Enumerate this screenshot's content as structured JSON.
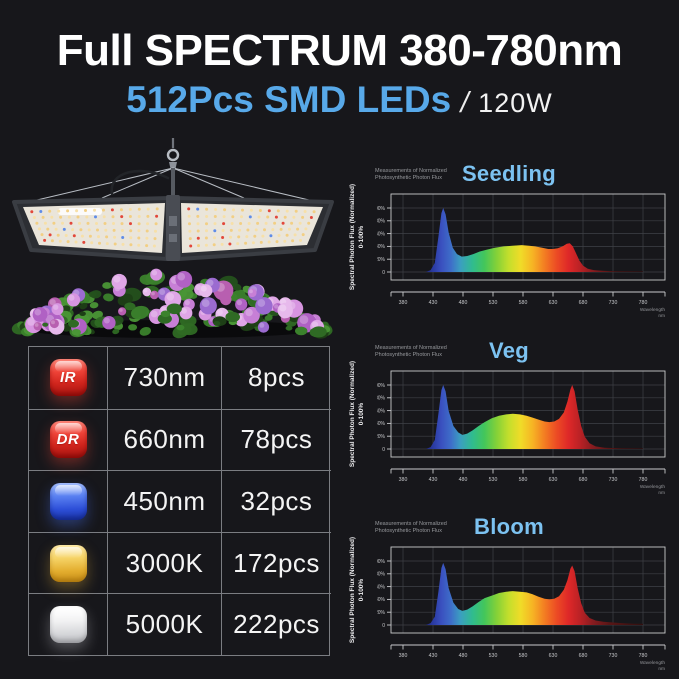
{
  "page": {
    "bg": "#17171b"
  },
  "header": {
    "title": "Full SPECTRUM 380-780nm",
    "subtitle_leds": "512Pcs SMD LEDs",
    "subtitle_sep": "/",
    "subtitle_watt": "120W",
    "accent_blue": "#58a9e9"
  },
  "fixture": {
    "frame": "#3a3d43",
    "board": "#eae5da",
    "led_warm": "#f7e0a8",
    "led_warm2": "#f2cf84",
    "led_red": "#e2473a",
    "led_blue": "#5f8ce8",
    "cable": "#b8bdc4",
    "foliage": [
      "#24511c",
      "#2f6a24",
      "#3b822c",
      "#4a9636",
      "#1d3f16"
    ],
    "blooms": [
      "#c77fd6",
      "#b061c4",
      "#d795e0",
      "#9b6bd0",
      "#dfa6e6",
      "#b85fb0",
      "#e7b9ec"
    ]
  },
  "led_table": {
    "rows": [
      {
        "chip_label": "IR",
        "chip_type": "red",
        "wavelength": "730nm",
        "count": "8pcs"
      },
      {
        "chip_label": "DR",
        "chip_type": "red",
        "wavelength": "660nm",
        "count": "78pcs"
      },
      {
        "chip_label": "",
        "chip_type": "blue",
        "wavelength": "450nm",
        "count": "32pcs"
      },
      {
        "chip_label": "",
        "chip_type": "gold",
        "wavelength": "3000K",
        "count": "172pcs"
      },
      {
        "chip_label": "",
        "chip_type": "white",
        "wavelength": "5000K",
        "count": "222pcs"
      }
    ]
  },
  "charts": {
    "note_line1": "Measurements of Normalized",
    "note_line2": "Photosynthetic Photon Flux",
    "ylabel": "Spectral Photon Flux (Normalized)",
    "ylabel2": "0-100%",
    "xlabel": "Wavelength",
    "xlabel_unit": "nm",
    "title_color": "#7cc2f1",
    "grid_color": "#3f4147",
    "axis_color": "#c9cacd",
    "tick_color": "#c6c7ca",
    "yticks": [
      "100%",
      "80%",
      "60%",
      "40%",
      "20%",
      "0"
    ],
    "xticks": [
      380,
      430,
      480,
      530,
      580,
      630,
      680,
      730,
      780
    ],
    "gradient": [
      [
        0,
        "#10104a"
      ],
      [
        0.08,
        "#1c2370"
      ],
      [
        0.13,
        "#2c3da6"
      ],
      [
        0.16,
        "#3a50bf"
      ],
      [
        0.2,
        "#3e6ec9"
      ],
      [
        0.24,
        "#3b9fc0"
      ],
      [
        0.29,
        "#30bc8e"
      ],
      [
        0.34,
        "#44c65a"
      ],
      [
        0.39,
        "#84d138"
      ],
      [
        0.44,
        "#c3de2c"
      ],
      [
        0.49,
        "#f0dc28"
      ],
      [
        0.54,
        "#f6b424"
      ],
      [
        0.59,
        "#f37d22"
      ],
      [
        0.64,
        "#ec4b24"
      ],
      [
        0.69,
        "#de2828"
      ],
      [
        0.74,
        "#b82125"
      ],
      [
        0.79,
        "#871c20"
      ],
      [
        0.86,
        "#581616"
      ],
      [
        1,
        "#321010"
      ]
    ]
  },
  "chart_data": [
    {
      "type": "area",
      "title": "Seedling",
      "xlabel": "Wavelength (nm)",
      "ylabel": "Spectral Photon Flux (Normalized) 0-100%",
      "xlim": [
        380,
        780
      ],
      "ylim": [
        0,
        100
      ],
      "grid": true,
      "points": [
        [
          380,
          0
        ],
        [
          418,
          0
        ],
        [
          426,
          3
        ],
        [
          433,
          14
        ],
        [
          439,
          55
        ],
        [
          444,
          92
        ],
        [
          447,
          100
        ],
        [
          451,
          90
        ],
        [
          456,
          62
        ],
        [
          463,
          38
        ],
        [
          470,
          28
        ],
        [
          478,
          24
        ],
        [
          487,
          25
        ],
        [
          497,
          28
        ],
        [
          508,
          32
        ],
        [
          520,
          35
        ],
        [
          533,
          38
        ],
        [
          548,
          40
        ],
        [
          562,
          41
        ],
        [
          578,
          42
        ],
        [
          590,
          41
        ],
        [
          600,
          40
        ],
        [
          612,
          38
        ],
        [
          622,
          36
        ],
        [
          630,
          36
        ],
        [
          638,
          37
        ],
        [
          646,
          40
        ],
        [
          653,
          44
        ],
        [
          658,
          45
        ],
        [
          663,
          40
        ],
        [
          668,
          30
        ],
        [
          674,
          18
        ],
        [
          680,
          10
        ],
        [
          688,
          5
        ],
        [
          698,
          3
        ],
        [
          712,
          2
        ],
        [
          735,
          1
        ],
        [
          780,
          1
        ]
      ]
    },
    {
      "type": "area",
      "title": "Veg",
      "xlabel": "Wavelength (nm)",
      "ylabel": "Spectral Photon Flux (Normalized) 0-100%",
      "xlim": [
        380,
        780
      ],
      "ylim": [
        0,
        100
      ],
      "grid": true,
      "points": [
        [
          380,
          0
        ],
        [
          418,
          0
        ],
        [
          426,
          3
        ],
        [
          433,
          14
        ],
        [
          439,
          55
        ],
        [
          444,
          92
        ],
        [
          447,
          100
        ],
        [
          451,
          90
        ],
        [
          456,
          60
        ],
        [
          464,
          36
        ],
        [
          472,
          26
        ],
        [
          479,
          22
        ],
        [
          487,
          24
        ],
        [
          496,
          29
        ],
        [
          506,
          36
        ],
        [
          516,
          42
        ],
        [
          528,
          48
        ],
        [
          540,
          52
        ],
        [
          552,
          54
        ],
        [
          563,
          55
        ],
        [
          575,
          54
        ],
        [
          586,
          52
        ],
        [
          596,
          49
        ],
        [
          606,
          46
        ],
        [
          616,
          43
        ],
        [
          624,
          42
        ],
        [
          632,
          43
        ],
        [
          640,
          47
        ],
        [
          648,
          57
        ],
        [
          654,
          74
        ],
        [
          659,
          93
        ],
        [
          662,
          100
        ],
        [
          666,
          90
        ],
        [
          671,
          62
        ],
        [
          677,
          36
        ],
        [
          683,
          19
        ],
        [
          691,
          9
        ],
        [
          701,
          4
        ],
        [
          716,
          2
        ],
        [
          745,
          1
        ],
        [
          780,
          1
        ]
      ]
    },
    {
      "type": "area",
      "title": "Bloom",
      "xlabel": "Wavelength (nm)",
      "ylabel": "Spectral Photon Flux (Normalized) 0-100%",
      "xlim": [
        380,
        780
      ],
      "ylim": [
        0,
        100
      ],
      "grid": true,
      "points": [
        [
          380,
          0
        ],
        [
          418,
          0
        ],
        [
          426,
          3
        ],
        [
          433,
          13
        ],
        [
          439,
          52
        ],
        [
          444,
          89
        ],
        [
          447,
          97
        ],
        [
          451,
          87
        ],
        [
          456,
          58
        ],
        [
          464,
          35
        ],
        [
          472,
          25
        ],
        [
          479,
          22
        ],
        [
          487,
          24
        ],
        [
          496,
          29
        ],
        [
          506,
          36
        ],
        [
          516,
          42
        ],
        [
          528,
          46
        ],
        [
          540,
          50
        ],
        [
          552,
          52
        ],
        [
          563,
          53
        ],
        [
          575,
          52
        ],
        [
          586,
          51
        ],
        [
          596,
          48
        ],
        [
          606,
          44
        ],
        [
          616,
          41
        ],
        [
          624,
          40
        ],
        [
          632,
          41
        ],
        [
          640,
          45
        ],
        [
          648,
          55
        ],
        [
          654,
          70
        ],
        [
          659,
          88
        ],
        [
          662,
          93
        ],
        [
          666,
          84
        ],
        [
          671,
          58
        ],
        [
          677,
          34
        ],
        [
          683,
          19
        ],
        [
          691,
          11
        ],
        [
          701,
          7
        ],
        [
          714,
          5
        ],
        [
          728,
          4
        ],
        [
          745,
          3
        ],
        [
          765,
          2
        ],
        [
          780,
          2
        ]
      ]
    }
  ]
}
